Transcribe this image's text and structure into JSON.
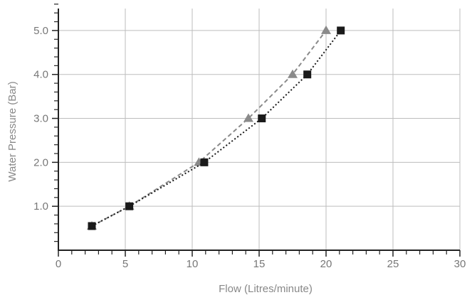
{
  "chart_data": {
    "type": "line",
    "title": "",
    "xlabel": "Flow (Litres/minute)",
    "ylabel": "Water Pressure (Bar)",
    "xlim": [
      0,
      30
    ],
    "ylim": [
      0,
      5.5
    ],
    "x_ticks": [
      {
        "value": 0,
        "label": "0"
      },
      {
        "value": 5,
        "label": "5"
      },
      {
        "value": 10,
        "label": "10"
      },
      {
        "value": 15,
        "label": "15"
      },
      {
        "value": 20,
        "label": "20"
      },
      {
        "value": 25,
        "label": "25"
      },
      {
        "value": 30,
        "label": "30"
      }
    ],
    "y_ticks": [
      {
        "value": 1,
        "label": "1.0"
      },
      {
        "value": 2,
        "label": "2.0"
      },
      {
        "value": 3,
        "label": "3.0"
      },
      {
        "value": 4,
        "label": "4.0"
      },
      {
        "value": 5,
        "label": "5.0"
      }
    ],
    "grid": true,
    "series": [
      {
        "marker": "triangle",
        "line_style": "dashed",
        "color": "#8a8a8a",
        "points": [
          {
            "x": 2.5,
            "y": 0.55
          },
          {
            "x": 5.3,
            "y": 1.0
          },
          {
            "x": 10.5,
            "y": 2.0
          },
          {
            "x": 14.2,
            "y": 3.0
          },
          {
            "x": 17.5,
            "y": 4.0
          },
          {
            "x": 20.0,
            "y": 5.0
          }
        ]
      },
      {
        "marker": "square",
        "line_style": "dotted",
        "color": "#1a1a1a",
        "points": [
          {
            "x": 2.5,
            "y": 0.55
          },
          {
            "x": 5.3,
            "y": 1.0
          },
          {
            "x": 10.9,
            "y": 2.0
          },
          {
            "x": 15.2,
            "y": 3.0
          },
          {
            "x": 18.6,
            "y": 4.0
          },
          {
            "x": 21.1,
            "y": 5.0
          }
        ]
      }
    ]
  }
}
